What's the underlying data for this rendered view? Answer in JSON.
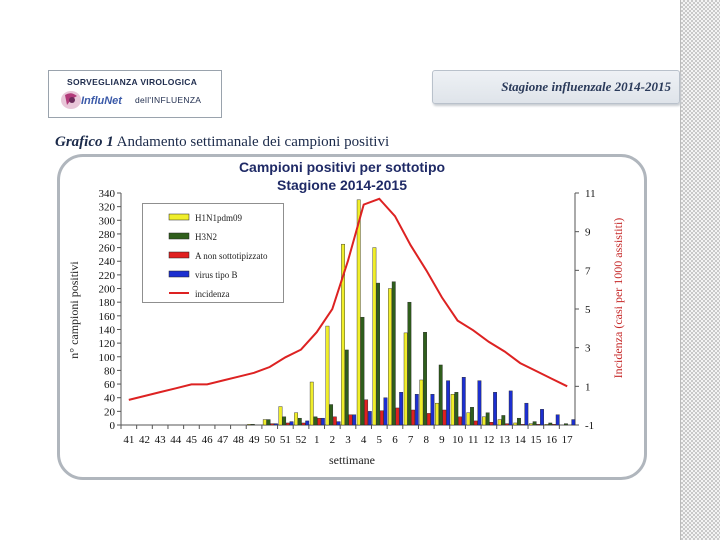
{
  "header": {
    "logo_title": "SORVEGLIANZA VIROLOGICA",
    "logo_subtitle": "dell'INFLUENZA",
    "logo_brand": "InfluNet",
    "season": "Stagione influenzale 2014-2015"
  },
  "caption": {
    "label": "Grafico 1",
    "text": " Andamento settimanale dei campioni positivi"
  },
  "colors": {
    "H1N1pdm09": "#f0ee2a",
    "H3N2": "#2f5e1c",
    "A_non_sottotipizzato": "#e02020",
    "virus_tipo_B": "#1c2fd0",
    "incidenza": "#dd2222"
  },
  "chart_data": {
    "type": "bar",
    "title": "Campioni positivi  per sottotipo",
    "subtitle": "Stagione 2014-2015",
    "xlabel": "settimane",
    "ylabel": "n° campioni positivi",
    "y2label": "Incidenza (casi per 1000 assistiti)",
    "ylim": [
      0,
      340
    ],
    "y_ticks": [
      0,
      20,
      40,
      60,
      80,
      100,
      120,
      140,
      160,
      180,
      200,
      220,
      240,
      260,
      280,
      300,
      320,
      340
    ],
    "y2lim": [
      -1,
      11
    ],
    "y2_ticks": [
      -1,
      1,
      3,
      5,
      7,
      9,
      11
    ],
    "grid": false,
    "legend_position": "top-left",
    "categories": [
      "41",
      "42",
      "43",
      "44",
      "45",
      "46",
      "47",
      "48",
      "49",
      "50",
      "51",
      "52",
      "1",
      "2",
      "3",
      "4",
      "5",
      "6",
      "7",
      "8",
      "9",
      "10",
      "11",
      "12",
      "13",
      "14",
      "15",
      "16",
      "17"
    ],
    "series": [
      {
        "name": "H1N1pdm09",
        "values": [
          0,
          0,
          0,
          0,
          0,
          0,
          0,
          0,
          1,
          8,
          27,
          18,
          63,
          145,
          265,
          330,
          260,
          200,
          135,
          66,
          32,
          45,
          18,
          12,
          8,
          3,
          2,
          1,
          0
        ]
      },
      {
        "name": "H3N2",
        "values": [
          0,
          0,
          0,
          0,
          0,
          0,
          0,
          0,
          1,
          8,
          12,
          10,
          12,
          30,
          110,
          158,
          208,
          210,
          180,
          136,
          88,
          48,
          26,
          18,
          14,
          10,
          5,
          3,
          2
        ]
      },
      {
        "name": "A non sottotipizzato",
        "values": [
          0,
          0,
          0,
          0,
          0,
          0,
          0,
          0,
          0,
          2,
          3,
          3,
          10,
          12,
          15,
          37,
          21,
          25,
          22,
          17,
          22,
          12,
          6,
          4,
          2,
          1,
          1,
          1,
          0
        ]
      },
      {
        "name": "virus tipo B",
        "values": [
          0,
          0,
          0,
          0,
          0,
          0,
          0,
          0,
          0,
          2,
          5,
          6,
          10,
          5,
          15,
          20,
          40,
          48,
          45,
          45,
          65,
          70,
          65,
          48,
          50,
          32,
          23,
          15,
          8
        ]
      },
      {
        "name": "incidenza",
        "type": "line",
        "axis": "secondary",
        "values": [
          0.3,
          0.5,
          0.7,
          0.9,
          1.1,
          1.1,
          1.3,
          1.5,
          1.7,
          2.0,
          2.5,
          2.9,
          3.8,
          5.0,
          7.5,
          10.4,
          10.7,
          9.8,
          8.3,
          7.0,
          5.6,
          4.4,
          3.9,
          3.3,
          2.8,
          2.2,
          1.8,
          1.4,
          1.0
        ]
      }
    ]
  }
}
